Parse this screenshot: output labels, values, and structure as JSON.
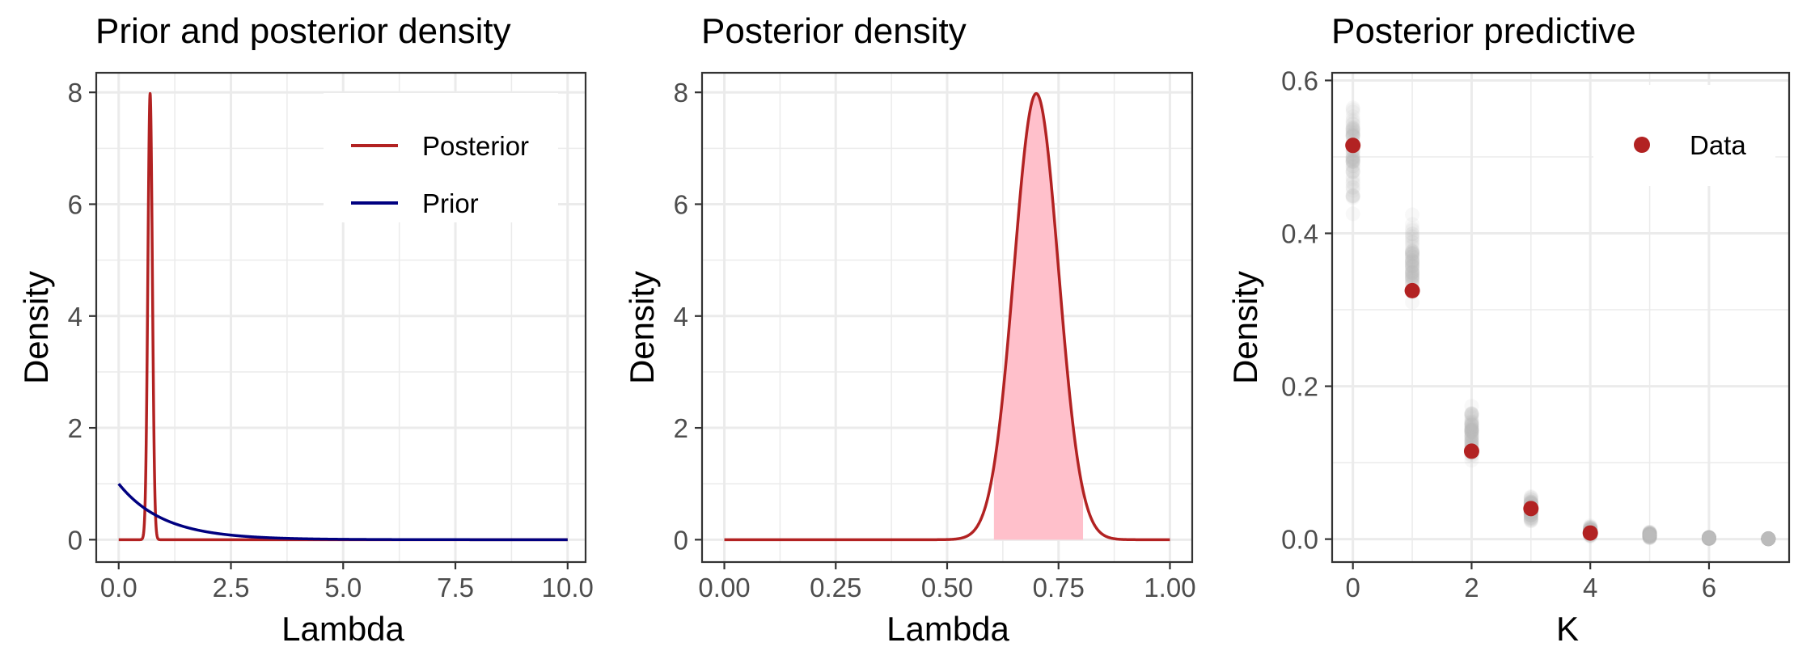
{
  "chart_data": [
    {
      "type": "line",
      "title": "Prior and posterior density",
      "xlabel": "Lambda",
      "ylabel": "Density",
      "xlim": [
        -0.5,
        10.4
      ],
      "ylim": [
        -0.4,
        8.35
      ],
      "xticks": [
        0,
        2.5,
        5,
        7.5,
        10
      ],
      "xtick_labels": [
        "0.0",
        "2.5",
        "5.0",
        "7.5",
        "10.0"
      ],
      "yticks": [
        0,
        2,
        4,
        6,
        8
      ],
      "ytick_labels": [
        "0",
        "2",
        "4",
        "6",
        "8"
      ],
      "grid": true,
      "legend": "top-right",
      "series": [
        {
          "name": "Posterior",
          "color": "#B22222",
          "distribution": "normal",
          "mean": 0.7,
          "sd": 0.05,
          "x_range": [
            0,
            10
          ]
        },
        {
          "name": "Prior",
          "color": "#000080",
          "distribution": "exponential",
          "rate": 1,
          "x_range": [
            0,
            10
          ]
        }
      ]
    },
    {
      "type": "area",
      "title": "Posterior density",
      "xlabel": "Lambda",
      "ylabel": "Density",
      "xlim": [
        -0.05,
        1.05
      ],
      "ylim": [
        -0.4,
        8.35
      ],
      "xticks": [
        0,
        0.25,
        0.5,
        0.75,
        1
      ],
      "xtick_labels": [
        "0.00",
        "0.25",
        "0.50",
        "0.75",
        "1.00"
      ],
      "yticks": [
        0,
        2,
        4,
        6,
        8
      ],
      "ytick_labels": [
        "0",
        "2",
        "4",
        "6",
        "8"
      ],
      "grid": true,
      "series": [
        {
          "color": "#B22222",
          "distribution": "normal",
          "mean": 0.7,
          "sd": 0.05,
          "x_range": [
            0,
            1
          ]
        }
      ],
      "shaded_interval": {
        "from": 0.605,
        "to": 0.805,
        "fill": "#FFC0CB"
      }
    },
    {
      "type": "scatter",
      "title": "Posterior predictive",
      "xlabel": "K",
      "ylabel": "Density",
      "xlim": [
        -0.35,
        7.35
      ],
      "ylim": [
        -0.03,
        0.61
      ],
      "xticks": [
        0,
        2,
        4,
        6
      ],
      "xtick_labels": [
        "0",
        "2",
        "4",
        "6"
      ],
      "yticks": [
        0,
        0.2,
        0.4,
        0.6
      ],
      "ytick_labels": [
        "0.0",
        "0.2",
        "0.4",
        "0.6"
      ],
      "grid": true,
      "legend": "top-right",
      "predictive_draws": {
        "color": "#BEBEBE",
        "ranges": [
          {
            "k": 0,
            "min": 0.42,
            "max": 0.59
          },
          {
            "k": 1,
            "min": 0.29,
            "max": 0.44
          },
          {
            "k": 2,
            "min": 0.09,
            "max": 0.18
          },
          {
            "k": 3,
            "min": 0.015,
            "max": 0.065
          },
          {
            "k": 4,
            "min": 0.0,
            "max": 0.02
          },
          {
            "k": 5,
            "min": 0.0,
            "max": 0.01
          },
          {
            "k": 6,
            "min": 0.0,
            "max": 0.003
          },
          {
            "k": 7,
            "min": 0.0,
            "max": 0.001
          }
        ]
      },
      "series": [
        {
          "name": "Data",
          "color": "#B22222",
          "x": [
            0,
            1,
            2,
            3,
            4
          ],
          "y": [
            0.515,
            0.325,
            0.115,
            0.04,
            0.008
          ]
        }
      ]
    }
  ]
}
